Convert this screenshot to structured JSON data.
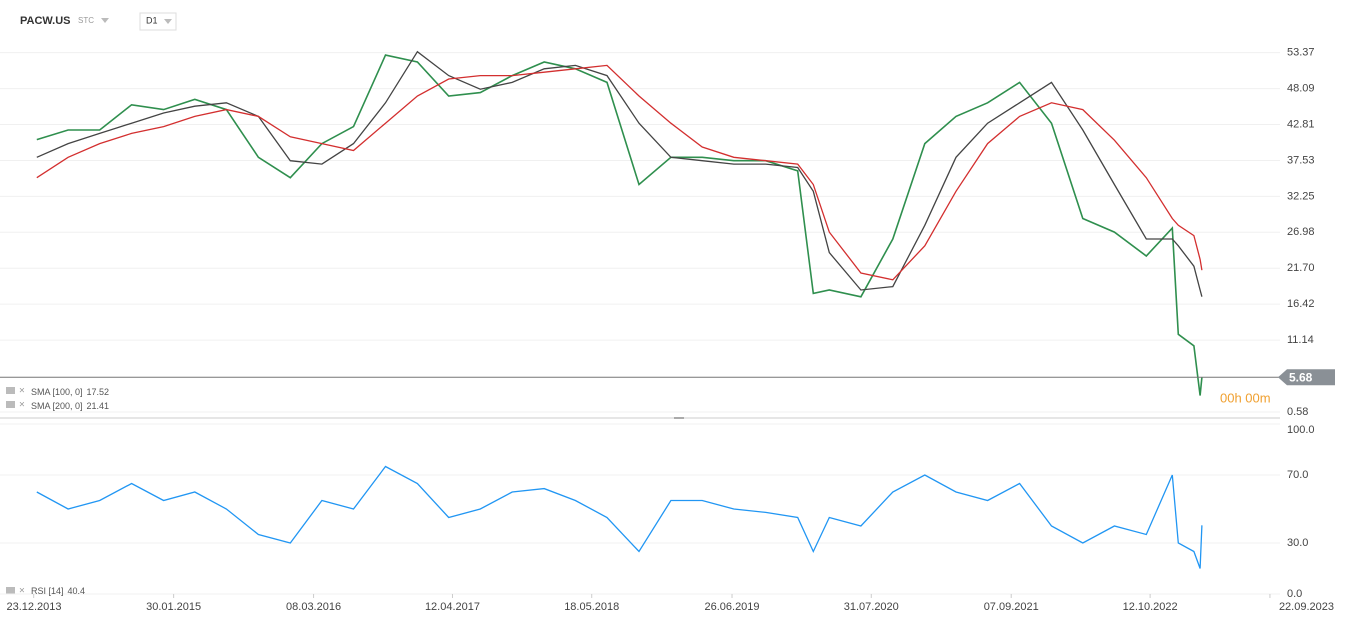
{
  "header": {
    "symbol": "PACW.US",
    "instrument_type": "STC",
    "timeframe": "D1",
    "countdown": "00h 00m"
  },
  "chart_data": [
    {
      "type": "line",
      "x": [
        "2014-01-01",
        "2014-04-01",
        "2014-07-01",
        "2014-10-01",
        "2015-01-01",
        "2015-04-01",
        "2015-07-01",
        "2015-10-01",
        "2016-01-01",
        "2016-04-01",
        "2016-07-01",
        "2016-10-01",
        "2017-01-01",
        "2017-04-01",
        "2017-07-01",
        "2017-10-01",
        "2018-01-01",
        "2018-04-01",
        "2018-07-01",
        "2018-10-01",
        "2019-01-01",
        "2019-04-01",
        "2019-07-01",
        "2019-10-01",
        "2020-01-01",
        "2020-02-15",
        "2020-04-01",
        "2020-07-01",
        "2020-10-01",
        "2021-01-01",
        "2021-04-01",
        "2021-07-01",
        "2021-10-01",
        "2022-01-01",
        "2022-04-01",
        "2022-07-01",
        "2022-10-01",
        "2022-12-15",
        "2023-01-01",
        "2023-02-15",
        "2023-03-05",
        "2023-03-10"
      ],
      "series": [
        {
          "color": "#2f8f4e",
          "values": [
            40.6,
            42,
            42,
            45.7,
            45,
            46.5,
            45,
            38,
            35,
            40,
            42.5,
            53,
            52,
            47,
            47.5,
            50,
            52,
            51,
            49,
            34,
            38,
            38,
            37.5,
            37.5,
            36,
            18,
            18.5,
            17.5,
            26,
            40,
            44,
            46,
            49,
            43,
            29,
            27,
            23.5,
            27.6,
            12,
            10.3,
            3,
            5.68
          ]
        },
        {
          "name": "SMA [100,  0]",
          "color": "#444444",
          "values": [
            38,
            40,
            41.5,
            43,
            44.5,
            45.5,
            46,
            44,
            37.5,
            37,
            40,
            46,
            53.5,
            50,
            48,
            49,
            51,
            51.5,
            50,
            43,
            38,
            37.5,
            37,
            37,
            36.5,
            33,
            24,
            18.5,
            19,
            28,
            38,
            43,
            46,
            49,
            42,
            34,
            26,
            26,
            25,
            22,
            18.5,
            17.52
          ]
        },
        {
          "name": "SMA [200,  0]",
          "color": "#d32f2f",
          "values": [
            35,
            38,
            40,
            41.5,
            42.5,
            44,
            45,
            44,
            41,
            40,
            39,
            43,
            47,
            49.5,
            50,
            50,
            50.5,
            51,
            51.5,
            47,
            43,
            39.5,
            38,
            37.5,
            37,
            34,
            27,
            21,
            20,
            25,
            33,
            40,
            44,
            46,
            45,
            40.5,
            35,
            29,
            28,
            26.5,
            23,
            21.41
          ]
        }
      ],
      "xlim": [
        "2013-09-17",
        "2023-10-21"
      ],
      "ylim": [
        -0.3,
        61.1
      ],
      "yticks": [
        53.37,
        48.09,
        42.81,
        37.53,
        32.25,
        26.98,
        {
          "value": 21.7,
          "label": "21.70"
        },
        16.42,
        11.14,
        0.58
      ],
      "grid": true
    },
    {
      "type": "line",
      "x": [
        "2014-01-01",
        "2014-04-01",
        "2014-07-01",
        "2014-10-01",
        "2015-01-01",
        "2015-04-01",
        "2015-07-01",
        "2015-10-01",
        "2016-01-01",
        "2016-04-01",
        "2016-07-01",
        "2016-10-01",
        "2017-01-01",
        "2017-04-01",
        "2017-07-01",
        "2017-10-01",
        "2018-01-01",
        "2018-04-01",
        "2018-07-01",
        "2018-10-01",
        "2019-01-01",
        "2019-04-01",
        "2019-07-01",
        "2019-10-01",
        "2020-01-01",
        "2020-02-15",
        "2020-04-01",
        "2020-07-01",
        "2020-10-01",
        "2021-01-01",
        "2021-04-01",
        "2021-07-01",
        "2021-10-01",
        "2022-01-01",
        "2022-04-01",
        "2022-07-01",
        "2022-10-01",
        "2022-12-15",
        "2023-01-01",
        "2023-02-15",
        "2023-03-05",
        "2023-03-10"
      ],
      "series": [
        {
          "name": "RSI [14]",
          "color": "#2196f3",
          "values": [
            60,
            50,
            55,
            65,
            55,
            60,
            50,
            35,
            30,
            55,
            50,
            75,
            65,
            45,
            50,
            60,
            62,
            55,
            45,
            25,
            55,
            55,
            50,
            48,
            45,
            25,
            45,
            40,
            60,
            70,
            60,
            55,
            65,
            40,
            30,
            40,
            35,
            70,
            30,
            25,
            15,
            40.4
          ]
        }
      ],
      "xlim": [
        "2013-09-17",
        "2023-10-21"
      ],
      "xticks": [
        {
          "value": "2013-12-23",
          "label": "23.12.2013"
        },
        {
          "value": "2015-01-30",
          "label": "30.01.2015"
        },
        {
          "value": "2016-03-08",
          "label": "08.03.2016"
        },
        {
          "value": "2017-04-12",
          "label": "12.04.2017"
        },
        {
          "value": "2018-05-18",
          "label": "18.05.2018"
        },
        {
          "value": "2019-06-26",
          "label": "26.06.2019"
        },
        {
          "value": "2020-07-31",
          "label": "31.07.2020"
        },
        {
          "value": "2021-09-07",
          "label": "07.09.2021"
        },
        {
          "value": "2022-10-12",
          "label": "12.10.2022"
        },
        {
          "value": "2023-09-22",
          "label": "22.09.2023"
        }
      ],
      "ylim": [
        0,
        100
      ],
      "yticks": [
        {
          "value": 100,
          "label": "100.0"
        },
        {
          "value": 70,
          "label": "70.0"
        },
        {
          "value": 30,
          "label": "30.0"
        },
        {
          "value": 0,
          "label": "0.0"
        }
      ],
      "grid": true
    }
  ]
}
